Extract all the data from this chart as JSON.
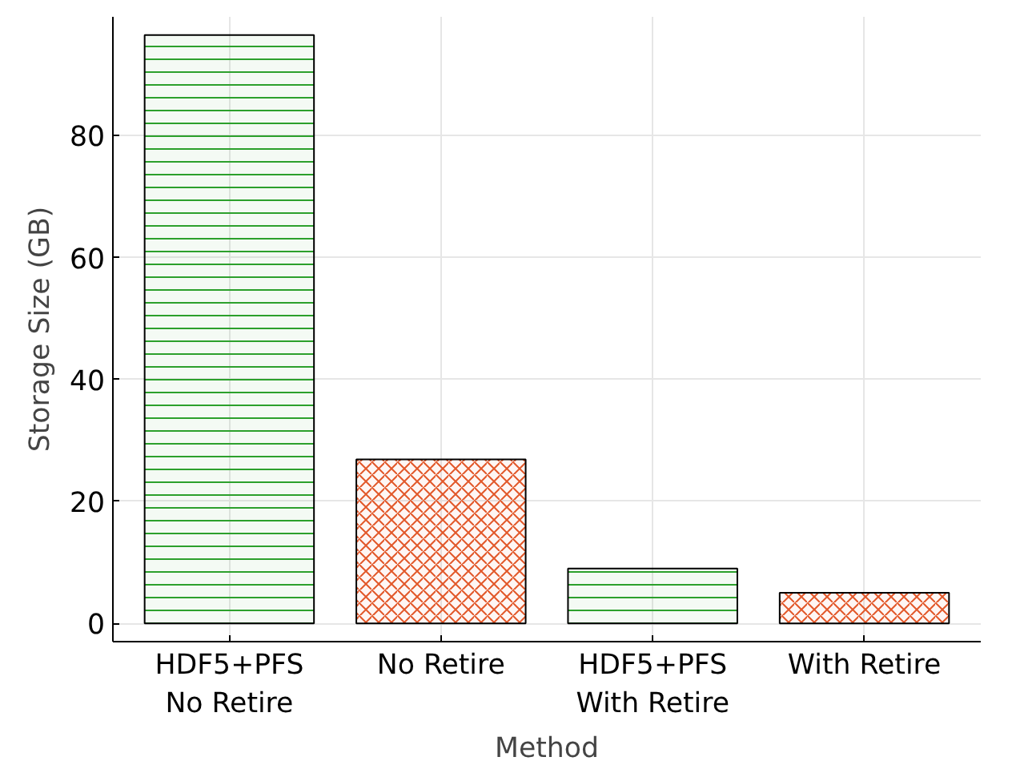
{
  "chart_data": {
    "type": "bar",
    "xlabel": "Method",
    "ylabel": "Storage Size (GB)",
    "categories": [
      "HDF5+PFS\nNo Retire",
      "No Retire",
      "HDF5+PFS\nWith Retire",
      "With Retire"
    ],
    "values": [
      96.5,
      26.9,
      9.0,
      5.0
    ],
    "colors": [
      "#2ca02c",
      "#e2582a",
      "#2ca02c",
      "#e2582a"
    ],
    "ylim": [
      -3,
      99.5
    ],
    "yticks": [
      0,
      20,
      40,
      60,
      80
    ],
    "grid": true
  }
}
